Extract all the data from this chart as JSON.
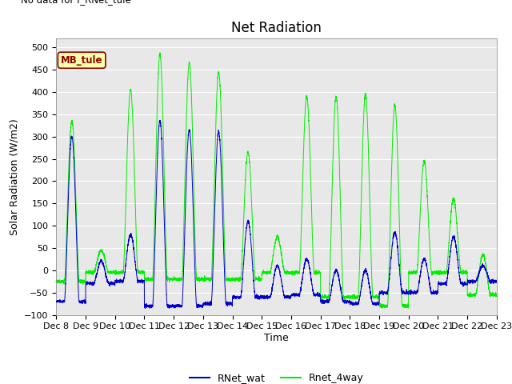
{
  "title": "Net Radiation",
  "no_data_text": "No data for f_RNet_tule",
  "mb_tule_label": "MB_tule",
  "ylabel": "Solar Radiation (W/m2)",
  "xlabel": "Time",
  "ylim": [
    -100,
    520
  ],
  "yticks": [
    -100,
    -50,
    0,
    50,
    100,
    150,
    200,
    250,
    300,
    350,
    400,
    450,
    500
  ],
  "xtick_labels": [
    "Dec 8",
    "Dec 9",
    "Dec 10",
    "Dec 11",
    "Dec 12",
    "Dec 13",
    "Dec 14",
    "Dec 15",
    "Dec 16",
    "Dec 17",
    "Dec 18",
    "Dec 19",
    "Dec 20",
    "Dec 21",
    "Dec 22",
    "Dec 23"
  ],
  "legend_labels": [
    "RNet_wat",
    "Rnet_4way"
  ],
  "line_colors": [
    "#0000cc",
    "#00ee00"
  ],
  "bg_color": "#e8e8e8",
  "fig_bg": "#ffffff",
  "title_fontsize": 12,
  "label_fontsize": 9,
  "tick_fontsize": 8,
  "legend_fontsize": 9
}
